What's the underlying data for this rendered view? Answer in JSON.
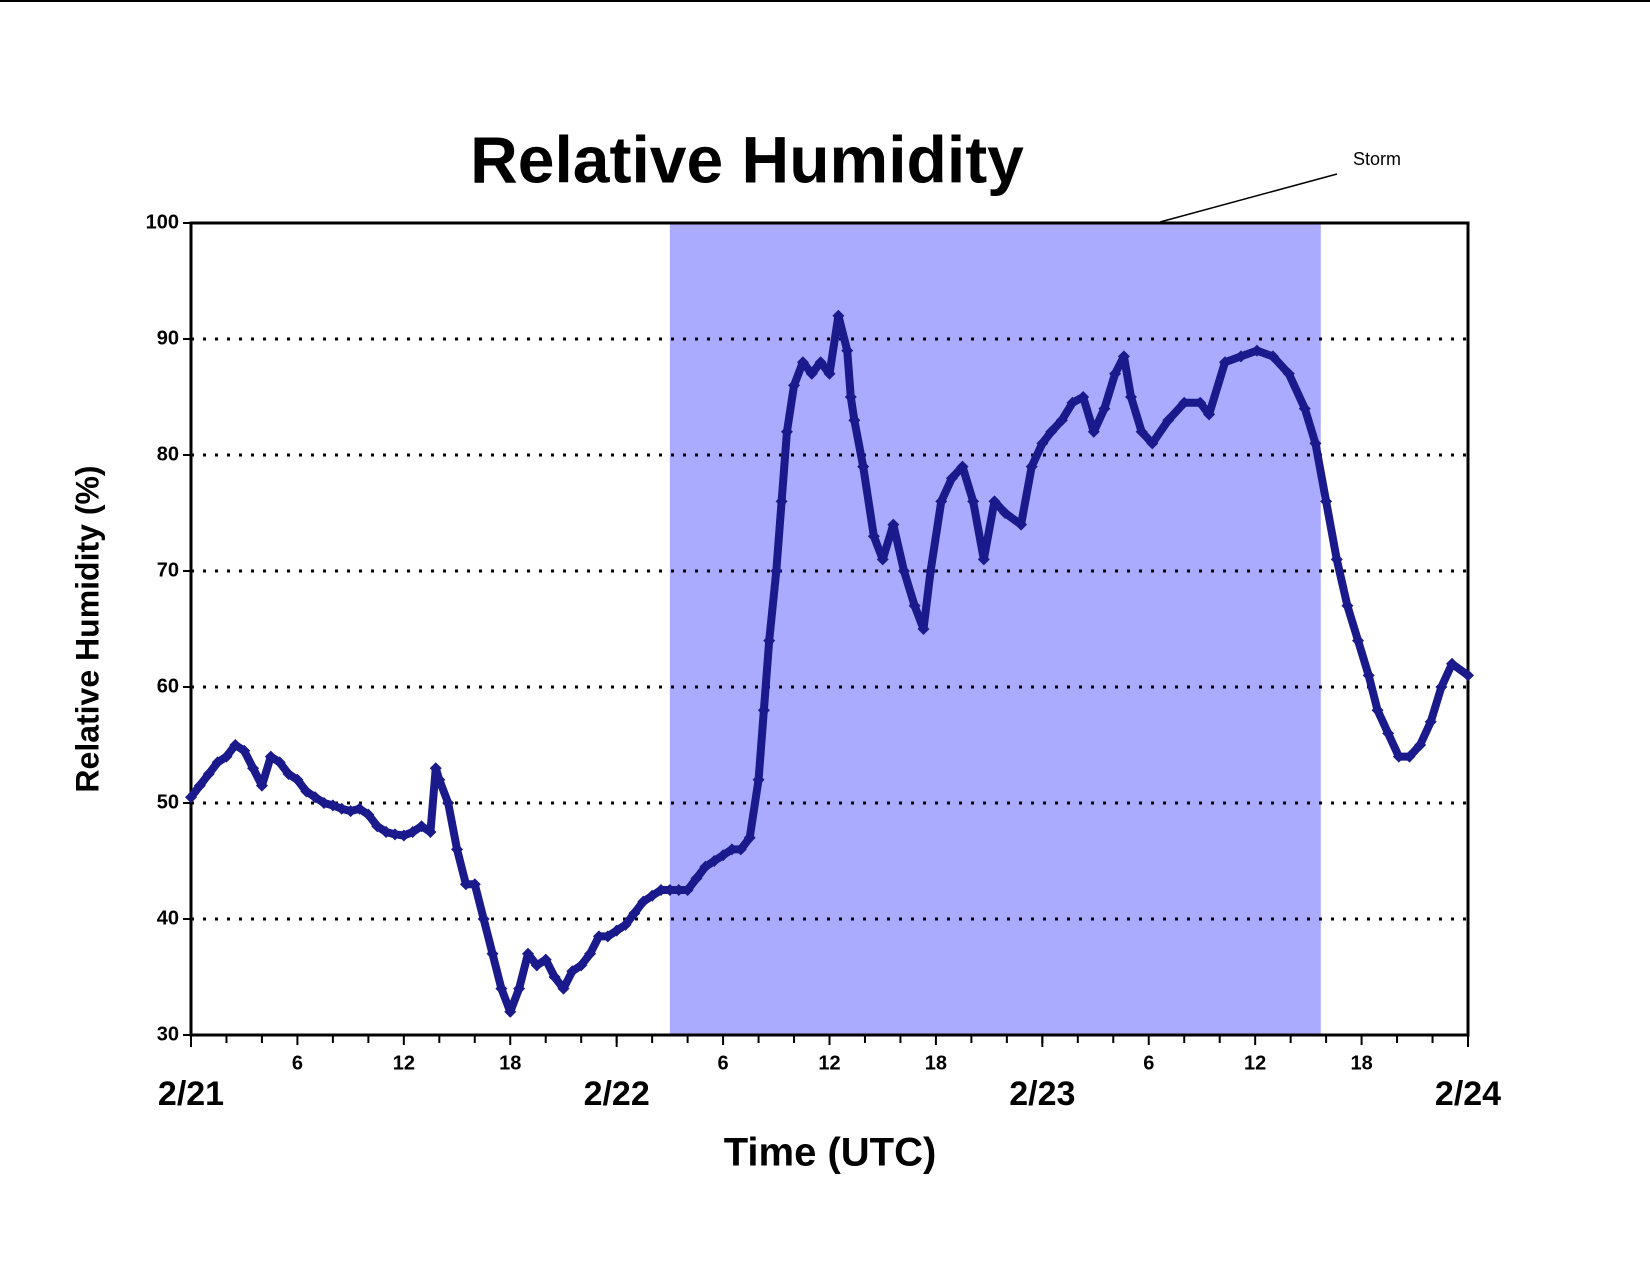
{
  "chart_data": {
    "type": "scatter",
    "title": "Relative Humidity",
    "x_label": "Time (UTC)",
    "y_label": "Relative Humidity (%)",
    "shaded_region": {
      "xrange": [
        27,
        63.7
      ],
      "color": "#aaaaff",
      "label": "Storm"
    },
    "series": [
      {
        "name": "Relative Humidity",
        "color": "#1a1a8c",
        "x": [
          0,
          0.5,
          1,
          1.5,
          2,
          2.5,
          3,
          3.5,
          4,
          4.5,
          5,
          5.5,
          6,
          6.5,
          7,
          7.5,
          8,
          8.5,
          9,
          9.5,
          10,
          10.5,
          11,
          11.5,
          12,
          12.5,
          13,
          13.5,
          13.8,
          14,
          14.5,
          15,
          15.5,
          16,
          16.5,
          17,
          17.5,
          18,
          18.5,
          19,
          19.5,
          20,
          20.5,
          21,
          21.5,
          22,
          22.5,
          23,
          23.5,
          24,
          24.5,
          25,
          25.5,
          26,
          26.5,
          27,
          27.5,
          28,
          28.5,
          29,
          29.5,
          30,
          30.5,
          31,
          31.5,
          32,
          32.3,
          32.6,
          33,
          33.3,
          33.6,
          34,
          34.5,
          35,
          35.5,
          36,
          36.5,
          37,
          37.2,
          37.4,
          37.9,
          38.5,
          39,
          39.6,
          40.2,
          40.8,
          41.3,
          41.7,
          42.3,
          42.9,
          43.5,
          44.1,
          44.7,
          45.3,
          45.9,
          46.8,
          47.4,
          48,
          48.5,
          49.1,
          49.7,
          50.3,
          50.9,
          51.5,
          52.1,
          52.6,
          53,
          53.6,
          54.2,
          55.1,
          56,
          56.9,
          57.4,
          58.3,
          59.2,
          60.1,
          61,
          61.9,
          62.8,
          63.4,
          64,
          64.6,
          65.2,
          65.8,
          66.4,
          66.9,
          67.5,
          68.1,
          68.7,
          69.3,
          69.9,
          70.5,
          71.1,
          72
        ],
        "values": [
          50.5,
          51.5,
          52.5,
          53.5,
          54,
          55,
          54.5,
          53,
          51.5,
          54,
          53.5,
          52.5,
          52,
          51,
          50.5,
          50,
          49.8,
          49.5,
          49.3,
          49.5,
          49,
          48,
          47.5,
          47.3,
          47.2,
          47.5,
          48,
          47.5,
          53,
          52,
          50,
          46,
          43,
          43,
          40,
          37,
          34,
          32,
          34,
          37,
          36,
          36.5,
          35,
          34,
          35.5,
          36,
          37,
          38.5,
          38.5,
          39,
          39.5,
          40.5,
          41.5,
          42,
          42.5,
          42.5,
          42.5,
          42.5,
          43.5,
          44.5,
          45,
          45.5,
          46,
          46,
          47,
          52,
          58,
          64,
          70,
          76,
          82,
          86,
          88,
          87,
          88,
          87,
          92,
          89,
          85,
          83,
          79,
          73,
          71,
          74,
          70,
          67,
          65,
          70,
          76,
          78,
          79,
          76,
          71,
          76,
          75,
          74,
          79,
          81,
          82,
          83,
          84.5,
          85,
          82,
          84,
          87,
          88.5,
          85,
          82,
          81,
          83,
          84.5,
          84.5,
          83.5,
          88,
          88.5,
          89,
          88.5,
          87,
          84,
          81,
          76,
          71,
          67,
          64,
          61,
          58,
          56,
          54,
          54,
          55,
          57,
          60,
          62,
          61
        ]
      }
    ],
    "xlim": [
      0,
      72
    ],
    "xticks": [
      6,
      12,
      18,
      {
        "value": 30,
        "label": "6"
      },
      {
        "value": 36,
        "label": "12"
      },
      {
        "value": 42,
        "label": "18"
      },
      {
        "value": 54,
        "label": "6"
      },
      {
        "value": 60,
        "label": "12"
      },
      {
        "value": 66,
        "label": "18"
      }
    ],
    "xminorticks": [
      0,
      2,
      4,
      8,
      10,
      14,
      16,
      20,
      22,
      24,
      26,
      28,
      32,
      34,
      38,
      40,
      44,
      46,
      48,
      50,
      52,
      56,
      58,
      62,
      64,
      68,
      70,
      72
    ],
    "date_ticks": [
      {
        "value": 0,
        "label": "2/21"
      },
      {
        "value": 24,
        "label": "2/22"
      },
      {
        "value": 48,
        "label": "2/23"
      },
      {
        "value": 72,
        "label": "2/24"
      }
    ],
    "ylim": [
      30,
      100
    ],
    "yticks": [
      30,
      40,
      50,
      60,
      70,
      80,
      90,
      100
    ],
    "grid": true
  }
}
